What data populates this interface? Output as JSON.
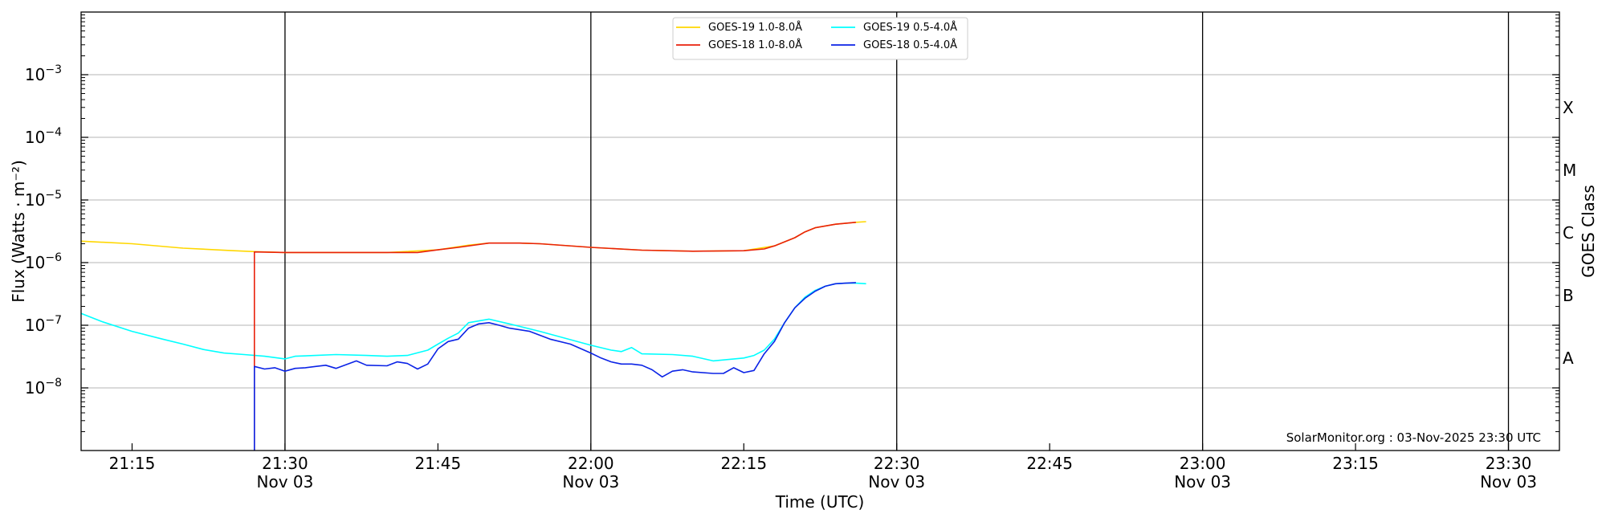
{
  "chart_data": {
    "type": "line",
    "xlabel": "Time (UTC)",
    "ylabel": "Flux (Watts · m⁻²)",
    "y2label": "GOES Class",
    "yscale": "log",
    "ylim": [
      1e-09,
      0.01
    ],
    "xlim": [
      "21:10",
      "23:35"
    ],
    "grid": "horizontal at decades",
    "legend_position": "top-center",
    "credit": "SolarMonitor.org : 03-Nov-2025 23:30 UTC",
    "x_ticks": [
      {
        "time": "21:15",
        "label": "21:15",
        "sublabel": ""
      },
      {
        "time": "21:30",
        "label": "21:30",
        "sublabel": "Nov 03"
      },
      {
        "time": "21:45",
        "label": "21:45",
        "sublabel": ""
      },
      {
        "time": "22:00",
        "label": "22:00",
        "sublabel": "Nov 03"
      },
      {
        "time": "22:15",
        "label": "22:15",
        "sublabel": ""
      },
      {
        "time": "22:30",
        "label": "22:30",
        "sublabel": "Nov 03"
      },
      {
        "time": "22:45",
        "label": "22:45",
        "sublabel": ""
      },
      {
        "time": "23:00",
        "label": "23:00",
        "sublabel": "Nov 03"
      },
      {
        "time": "23:15",
        "label": "23:15",
        "sublabel": ""
      },
      {
        "time": "23:30",
        "label": "23:30",
        "sublabel": "Nov 03"
      }
    ],
    "vertical_lines": [
      "21:30",
      "22:00",
      "22:30",
      "23:00",
      "23:30"
    ],
    "y_ticks": [
      {
        "value": 1e-08,
        "base": "10",
        "exp": "−8"
      },
      {
        "value": 1e-07,
        "base": "10",
        "exp": "−7"
      },
      {
        "value": 1e-06,
        "base": "10",
        "exp": "−6"
      },
      {
        "value": 1e-05,
        "base": "10",
        "exp": "−5"
      },
      {
        "value": 0.0001,
        "base": "10",
        "exp": "−4"
      },
      {
        "value": 0.001,
        "base": "10",
        "exp": "−3"
      }
    ],
    "goes_classes": [
      {
        "label": "A",
        "value": 3e-08
      },
      {
        "label": "B",
        "value": 3e-07
      },
      {
        "label": "C",
        "value": 3e-06
      },
      {
        "label": "M",
        "value": 3e-05
      },
      {
        "label": "X",
        "value": 0.0003
      }
    ],
    "series": [
      {
        "name": "GOES-19 1.0-8.0Å",
        "color": "#ffd700",
        "x": [
          "21:10",
          "21:15",
          "21:20",
          "21:25",
          "21:27",
          "21:30",
          "21:35",
          "21:40",
          "21:45",
          "21:48",
          "21:50",
          "21:53",
          "21:55",
          "22:00",
          "22:05",
          "22:10",
          "22:15",
          "22:18",
          "22:20",
          "22:21",
          "22:22",
          "22:24",
          "22:26",
          "22:27"
        ],
        "y": [
          2.2e-06,
          2e-06,
          1.7e-06,
          1.55e-06,
          1.5e-06,
          1.45e-06,
          1.45e-06,
          1.45e-06,
          1.6e-06,
          1.9e-06,
          2.05e-06,
          2.05e-06,
          2e-06,
          1.75e-06,
          1.58e-06,
          1.52e-06,
          1.55e-06,
          1.85e-06,
          2.5e-06,
          3.1e-06,
          3.6e-06,
          4.1e-06,
          4.4e-06,
          4.5e-06
        ]
      },
      {
        "name": "GOES-19 0.5-4.0Å",
        "color": "#00ffff",
        "x": [
          "21:10",
          "21:12",
          "21:15",
          "21:18",
          "21:20",
          "21:22",
          "21:24",
          "21:26",
          "21:28",
          "21:30",
          "21:31",
          "21:33",
          "21:35",
          "21:38",
          "21:40",
          "21:42",
          "21:44",
          "21:45",
          "21:46",
          "21:47",
          "21:48",
          "21:50",
          "21:52",
          "21:55",
          "22:00",
          "22:02",
          "22:03",
          "22:04",
          "22:05",
          "22:08",
          "22:10",
          "22:12",
          "22:15",
          "22:16",
          "22:17",
          "22:18",
          "22:19",
          "22:20",
          "22:21",
          "22:22",
          "22:23",
          "22:24",
          "22:25",
          "22:26",
          "22:27"
        ],
        "y": [
          1.55e-07,
          1.15e-07,
          8e-08,
          6e-08,
          5e-08,
          4.1e-08,
          3.6e-08,
          3.4e-08,
          3.2e-08,
          2.9e-08,
          3.2e-08,
          3.3e-08,
          3.4e-08,
          3.3e-08,
          3.2e-08,
          3.3e-08,
          4e-08,
          5e-08,
          6.2e-08,
          7.5e-08,
          1.1e-07,
          1.25e-07,
          1.05e-07,
          8e-08,
          4.8e-08,
          4e-08,
          3.8e-08,
          4.4e-08,
          3.5e-08,
          3.4e-08,
          3.2e-08,
          2.7e-08,
          3e-08,
          3.3e-08,
          4e-08,
          6e-08,
          1.1e-07,
          1.9e-07,
          2.8e-07,
          3.6e-07,
          4.2e-07,
          4.6e-07,
          4.7e-07,
          4.7e-07,
          4.6e-07
        ]
      },
      {
        "name": "GOES-18 1.0-8.0Å",
        "color": "#e8210b",
        "x": [
          "21:27",
          "21:27",
          "21:30",
          "21:35",
          "21:40",
          "21:43",
          "21:45",
          "21:47",
          "21:50",
          "21:53",
          "21:55",
          "22:00",
          "22:05",
          "22:10",
          "22:15",
          "22:17",
          "22:18",
          "22:20",
          "22:21",
          "22:22",
          "22:24",
          "22:26"
        ],
        "y": [
          1e-09,
          1.48e-06,
          1.45e-06,
          1.45e-06,
          1.45e-06,
          1.45e-06,
          1.6e-06,
          1.75e-06,
          2.05e-06,
          2.05e-06,
          2e-06,
          1.75e-06,
          1.58e-06,
          1.52e-06,
          1.55e-06,
          1.65e-06,
          1.85e-06,
          2.5e-06,
          3.1e-06,
          3.6e-06,
          4.1e-06,
          4.4e-06
        ]
      },
      {
        "name": "GOES-18 0.5-4.0Å",
        "color": "#0b23e6",
        "x": [
          "21:27",
          "21:27",
          "21:28",
          "21:29",
          "21:30",
          "21:31",
          "21:32",
          "21:33",
          "21:34",
          "21:35",
          "21:37",
          "21:38",
          "21:40",
          "21:41",
          "21:42",
          "21:43",
          "21:44",
          "21:45",
          "21:46",
          "21:47",
          "21:48",
          "21:49",
          "21:50",
          "21:51",
          "21:52",
          "21:54",
          "21:56",
          "21:58",
          "22:00",
          "22:01",
          "22:02",
          "22:03",
          "22:04",
          "22:05",
          "22:06",
          "22:07",
          "22:08",
          "22:09",
          "22:10",
          "22:12",
          "22:13",
          "22:14",
          "22:15",
          "22:16",
          "22:17",
          "22:18",
          "22:19",
          "22:20",
          "22:21",
          "22:22",
          "22:23",
          "22:24",
          "22:25",
          "22:26"
        ],
        "y": [
          1e-09,
          2.2e-08,
          2e-08,
          2.1e-08,
          1.85e-08,
          2.05e-08,
          2.1e-08,
          2.2e-08,
          2.3e-08,
          2.05e-08,
          2.7e-08,
          2.3e-08,
          2.25e-08,
          2.6e-08,
          2.45e-08,
          2e-08,
          2.4e-08,
          4.2e-08,
          5.5e-08,
          6e-08,
          9e-08,
          1.05e-07,
          1.1e-07,
          1e-07,
          9e-08,
          8e-08,
          6e-08,
          5e-08,
          3.6e-08,
          3e-08,
          2.6e-08,
          2.4e-08,
          2.4e-08,
          2.3e-08,
          1.95e-08,
          1.5e-08,
          1.85e-08,
          1.95e-08,
          1.8e-08,
          1.7e-08,
          1.7e-08,
          2.1e-08,
          1.75e-08,
          1.9e-08,
          3.5e-08,
          5.5e-08,
          1.1e-07,
          1.9e-07,
          2.7e-07,
          3.5e-07,
          4.2e-07,
          4.6e-07,
          4.7e-07,
          4.8e-07
        ]
      }
    ]
  }
}
